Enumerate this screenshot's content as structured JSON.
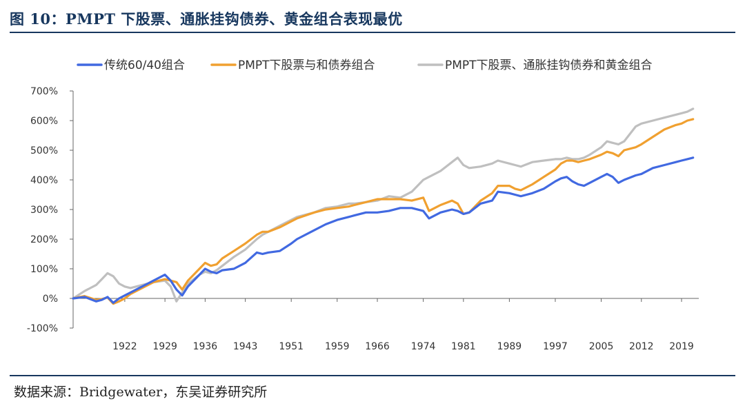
{
  "header": {
    "title": "图 10：PMPT 下股票、通胀挂钩债券、黄金组合表现最优"
  },
  "footer": {
    "source": "数据来源：Bridgewater，东吴证券研究所"
  },
  "chart_data": {
    "type": "line",
    "title": "",
    "xlabel": "",
    "ylabel": "",
    "ylim": [
      -100,
      700
    ],
    "xlim": [
      1913,
      2022
    ],
    "y_ticks": [
      -100,
      0,
      100,
      200,
      300,
      400,
      500,
      600,
      700
    ],
    "y_tick_labels": [
      "-100%",
      "0%",
      "100%",
      "200%",
      "300%",
      "400%",
      "500%",
      "600%",
      "700%"
    ],
    "x_ticks": [
      1922,
      1929,
      1936,
      1943,
      1951,
      1959,
      1966,
      1974,
      1981,
      1989,
      1997,
      2005,
      2012,
      2019
    ],
    "legend_position": "top",
    "grid": false,
    "series": [
      {
        "name": "传统60/40组合",
        "color": "#4169e1",
        "x": [
          1913,
          1915,
          1917,
          1918,
          1919,
          1920,
          1921,
          1922,
          1923,
          1925,
          1927,
          1929,
          1930,
          1931,
          1932,
          1933,
          1935,
          1936,
          1937,
          1938,
          1939,
          1941,
          1943,
          1945,
          1946,
          1947,
          1949,
          1951,
          1952,
          1955,
          1957,
          1959,
          1961,
          1962,
          1964,
          1966,
          1968,
          1970,
          1972,
          1974,
          1975,
          1977,
          1979,
          1980,
          1981,
          1982,
          1984,
          1986,
          1987,
          1989,
          1990,
          1991,
          1993,
          1995,
          1997,
          1998,
          1999,
          2000,
          2001,
          2002,
          2003,
          2005,
          2006,
          2007,
          2008,
          2009,
          2011,
          2012,
          2014,
          2016,
          2018,
          2019,
          2020,
          2021
        ],
        "values": [
          0,
          5,
          -10,
          -5,
          5,
          -15,
          0,
          10,
          20,
          40,
          60,
          80,
          60,
          30,
          10,
          40,
          80,
          100,
          90,
          85,
          95,
          100,
          120,
          155,
          150,
          155,
          160,
          185,
          200,
          230,
          250,
          265,
          275,
          280,
          290,
          290,
          295,
          305,
          305,
          295,
          270,
          290,
          300,
          295,
          285,
          290,
          320,
          330,
          360,
          355,
          350,
          345,
          355,
          370,
          395,
          405,
          410,
          395,
          385,
          380,
          390,
          410,
          420,
          410,
          390,
          400,
          415,
          420,
          440,
          450,
          460,
          465,
          470,
          475
        ]
      },
      {
        "name": "PMPT下股票与和债券组合",
        "color": "#f0a030",
        "x": [
          1913,
          1915,
          1917,
          1918,
          1919,
          1920,
          1921,
          1922,
          1923,
          1925,
          1927,
          1929,
          1930,
          1931,
          1932,
          1933,
          1935,
          1936,
          1937,
          1938,
          1939,
          1941,
          1943,
          1945,
          1946,
          1947,
          1949,
          1951,
          1952,
          1955,
          1957,
          1959,
          1961,
          1962,
          1964,
          1966,
          1968,
          1970,
          1972,
          1974,
          1975,
          1977,
          1979,
          1980,
          1981,
          1982,
          1984,
          1986,
          1987,
          1989,
          1990,
          1991,
          1993,
          1995,
          1997,
          1998,
          1999,
          2000,
          2001,
          2002,
          2003,
          2005,
          2006,
          2007,
          2008,
          2009,
          2011,
          2012,
          2014,
          2016,
          2018,
          2019,
          2020,
          2021
        ],
        "values": [
          0,
          8,
          -5,
          -2,
          3,
          -18,
          -10,
          0,
          15,
          35,
          55,
          65,
          60,
          55,
          30,
          60,
          100,
          120,
          110,
          115,
          135,
          160,
          185,
          215,
          225,
          225,
          240,
          260,
          270,
          290,
          300,
          305,
          310,
          315,
          325,
          335,
          335,
          335,
          330,
          340,
          295,
          315,
          330,
          320,
          285,
          290,
          330,
          355,
          380,
          380,
          370,
          365,
          385,
          410,
          435,
          455,
          465,
          465,
          460,
          465,
          470,
          485,
          495,
          490,
          480,
          500,
          510,
          520,
          545,
          570,
          585,
          590,
          600,
          605
        ]
      },
      {
        "name": "PMPT下股票、通胀挂钩债券和黄金组合",
        "color": "#bfbfbf",
        "x": [
          1913,
          1915,
          1917,
          1918,
          1919,
          1920,
          1921,
          1922,
          1923,
          1925,
          1927,
          1929,
          1930,
          1931,
          1932,
          1933,
          1935,
          1936,
          1937,
          1938,
          1939,
          1941,
          1943,
          1945,
          1946,
          1947,
          1949,
          1951,
          1952,
          1955,
          1957,
          1959,
          1961,
          1962,
          1964,
          1966,
          1968,
          1970,
          1972,
          1974,
          1975,
          1977,
          1979,
          1980,
          1981,
          1982,
          1984,
          1986,
          1987,
          1989,
          1990,
          1991,
          1993,
          1995,
          1997,
          1998,
          1999,
          2000,
          2001,
          2002,
          2003,
          2005,
          2006,
          2007,
          2008,
          2009,
          2011,
          2012,
          2014,
          2016,
          2018,
          2019,
          2020,
          2021
        ],
        "values": [
          0,
          25,
          45,
          65,
          85,
          75,
          50,
          40,
          35,
          45,
          55,
          60,
          40,
          -10,
          20,
          50,
          80,
          90,
          85,
          95,
          110,
          140,
          165,
          200,
          215,
          225,
          245,
          265,
          275,
          290,
          305,
          310,
          320,
          320,
          325,
          330,
          345,
          340,
          360,
          400,
          410,
          430,
          460,
          475,
          450,
          440,
          445,
          455,
          465,
          455,
          450,
          445,
          460,
          465,
          470,
          470,
          475,
          470,
          470,
          475,
          485,
          510,
          530,
          525,
          520,
          530,
          580,
          590,
          600,
          610,
          620,
          625,
          630,
          640
        ]
      }
    ]
  }
}
